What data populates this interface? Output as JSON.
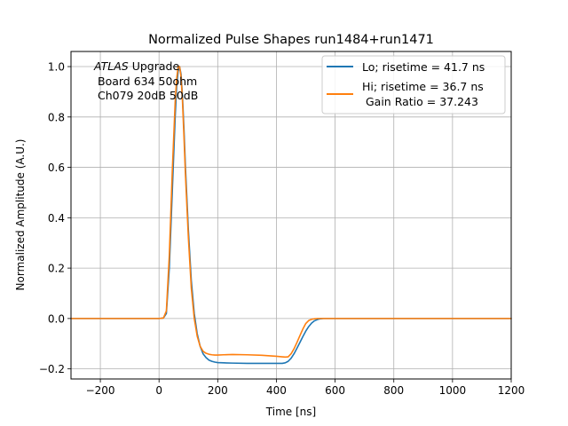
{
  "colors": {
    "lo": "#1f77b4",
    "hi": "#ff7f0e",
    "grid": "#b0b0b0"
  },
  "chart_data": {
    "type": "line",
    "title": "Normalized Pulse Shapes run1484+run1471",
    "xlabel": "Time [ns]",
    "ylabel": "Normalized Amplitude (A.U.)",
    "xlim": [
      -300,
      1200
    ],
    "ylim": [
      -0.24,
      1.06
    ],
    "grid": true,
    "xticks": [
      -200,
      0,
      200,
      400,
      600,
      800,
      1000,
      1200
    ],
    "xtick_labels": [
      "−200",
      "0",
      "200",
      "400",
      "600",
      "800",
      "1000",
      "1200"
    ],
    "yticks": [
      -0.2,
      0.0,
      0.2,
      0.4,
      0.6,
      0.8,
      1.0
    ],
    "ytick_labels": [
      "−0.2",
      "0.0",
      "0.2",
      "0.4",
      "0.6",
      "0.8",
      "1.0"
    ],
    "annotation": {
      "atlas": "ATLAS",
      "upgrade": " Upgrade",
      "line2": "Board 634 50ohm",
      "line3": "Ch079 20dB 50dB"
    },
    "legend": {
      "placement": "upper right",
      "entries": [
        {
          "series": "lo",
          "lines": [
            "Lo; risetime = 41.7 ns"
          ]
        },
        {
          "series": "hi",
          "lines": [
            "Hi; risetime = 36.7 ns",
            " Gain Ratio = 37.243"
          ]
        }
      ]
    },
    "series": [
      {
        "name": "Lo; risetime = 41.7 ns",
        "key": "lo",
        "x": [
          -300,
          -100,
          0,
          15,
          25,
          35,
          45,
          55,
          60,
          65,
          70,
          75,
          80,
          85,
          90,
          100,
          110,
          120,
          130,
          140,
          150,
          160,
          170,
          180,
          190,
          200,
          220,
          250,
          300,
          350,
          400,
          420,
          430,
          440,
          450,
          460,
          470,
          480,
          490,
          500,
          510,
          520,
          530,
          540,
          550,
          560,
          570,
          600,
          700,
          800,
          900,
          1000,
          1100,
          1200
        ],
        "y": [
          0.0,
          0.0,
          0.0,
          0.002,
          0.02,
          0.2,
          0.5,
          0.8,
          0.92,
          0.98,
          1.0,
          0.97,
          0.88,
          0.75,
          0.6,
          0.35,
          0.15,
          0.02,
          -0.06,
          -0.11,
          -0.14,
          -0.155,
          -0.165,
          -0.17,
          -0.173,
          -0.175,
          -0.176,
          -0.177,
          -0.178,
          -0.178,
          -0.178,
          -0.178,
          -0.176,
          -0.17,
          -0.158,
          -0.14,
          -0.118,
          -0.095,
          -0.072,
          -0.05,
          -0.032,
          -0.018,
          -0.009,
          -0.004,
          -0.001,
          0.0,
          0.0,
          0.0,
          0.0,
          0.0,
          0.0,
          0.0,
          0.0,
          0.0
        ]
      },
      {
        "name": "Hi; risetime = 36.7 ns Gain Ratio = 37.243",
        "key": "hi",
        "x": [
          -300,
          -100,
          0,
          15,
          25,
          35,
          45,
          55,
          60,
          65,
          70,
          75,
          80,
          85,
          90,
          100,
          110,
          120,
          130,
          140,
          150,
          160,
          170,
          180,
          190,
          200,
          220,
          250,
          300,
          350,
          400,
          420,
          430,
          440,
          450,
          460,
          470,
          480,
          490,
          500,
          510,
          520,
          530,
          540,
          550,
          560,
          570,
          600,
          700,
          800,
          900,
          1000,
          1100,
          1200
        ],
        "y": [
          0.0,
          0.0,
          0.0,
          0.002,
          0.03,
          0.25,
          0.58,
          0.86,
          0.95,
          1.0,
          1.0,
          0.96,
          0.86,
          0.72,
          0.57,
          0.32,
          0.12,
          0.0,
          -0.07,
          -0.11,
          -0.13,
          -0.138,
          -0.142,
          -0.144,
          -0.145,
          -0.145,
          -0.144,
          -0.143,
          -0.144,
          -0.146,
          -0.15,
          -0.152,
          -0.153,
          -0.152,
          -0.14,
          -0.12,
          -0.095,
          -0.068,
          -0.042,
          -0.02,
          -0.008,
          -0.003,
          -0.001,
          0.0,
          0.0,
          0.0,
          0.0,
          0.0,
          0.0,
          0.0,
          0.0,
          0.0,
          0.0,
          0.0
        ]
      }
    ]
  }
}
